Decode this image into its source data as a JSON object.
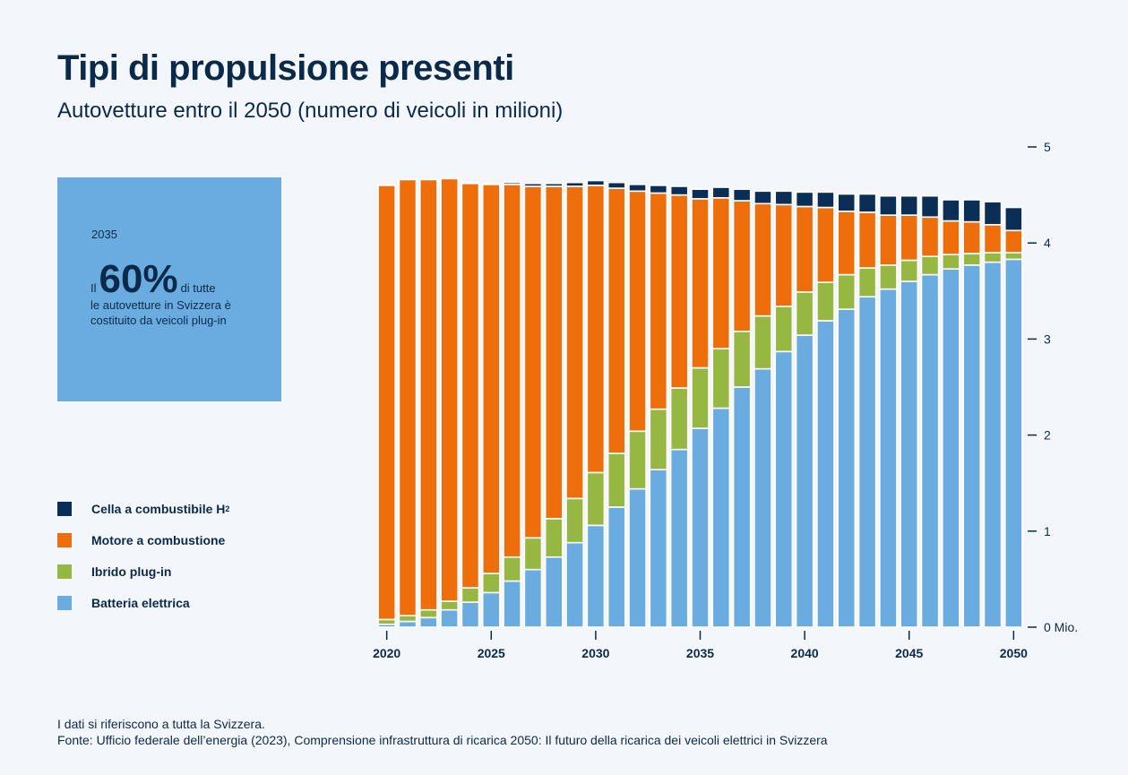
{
  "title": "Tipi di propulsione presenti",
  "subtitle": "Autovetture entro il 2050 (numero di veicoli in milioni)",
  "callout": {
    "year": "2035",
    "prefix": "Il",
    "percent": "60%",
    "suffix": "di tutte",
    "rest": "le autovetture in Svizzera è costituito da veicoli plug-in"
  },
  "footer": {
    "line1": "I dati si riferiscono a tutta la Svizzera.",
    "line2": "Fonte: Ufficio federale dell’energia (2023), Comprensione infrastruttura di ricarica 2050: Il futuro della ricarica dei veicoli elettrici in Svizzera"
  },
  "chart_data": {
    "type": "bar",
    "stacked": true,
    "x": [
      2020,
      2021,
      2022,
      2023,
      2024,
      2025,
      2026,
      2027,
      2028,
      2029,
      2030,
      2031,
      2032,
      2033,
      2034,
      2035,
      2036,
      2037,
      2038,
      2039,
      2040,
      2041,
      2042,
      2043,
      2044,
      2045,
      2046,
      2047,
      2048,
      2049,
      2050
    ],
    "x_tick_labels": [
      "2020",
      "2025",
      "2030",
      "2035",
      "2040",
      "2045",
      "2050"
    ],
    "y_tick_labels": [
      "0 Mio.",
      "1",
      "2",
      "3",
      "4",
      "5"
    ],
    "ylim": [
      0,
      5
    ],
    "legend": [
      {
        "name": "Cella a combustibile H",
        "sub": "2",
        "color": "#0b2e57"
      },
      {
        "name": "Motore a combustione",
        "color": "#ee6e0c"
      },
      {
        "name": "Ibrido plug-in",
        "color": "#97b743"
      },
      {
        "name": "Batteria elettrica",
        "color": "#6aace0"
      }
    ],
    "series": [
      {
        "name": "Batteria elettrica",
        "color": "#6aace0",
        "values": [
          0.03,
          0.06,
          0.1,
          0.18,
          0.26,
          0.36,
          0.48,
          0.6,
          0.73,
          0.88,
          1.06,
          1.25,
          1.44,
          1.64,
          1.85,
          2.07,
          2.28,
          2.5,
          2.69,
          2.87,
          3.04,
          3.19,
          3.31,
          3.44,
          3.52,
          3.6,
          3.67,
          3.73,
          3.77,
          3.8,
          3.83
        ]
      },
      {
        "name": "Ibrido plug-in",
        "color": "#97b743",
        "values": [
          0.05,
          0.06,
          0.08,
          0.09,
          0.15,
          0.2,
          0.25,
          0.33,
          0.4,
          0.46,
          0.55,
          0.56,
          0.6,
          0.63,
          0.64,
          0.63,
          0.62,
          0.58,
          0.55,
          0.47,
          0.45,
          0.4,
          0.36,
          0.3,
          0.25,
          0.22,
          0.19,
          0.15,
          0.12,
          0.1,
          0.07
        ]
      },
      {
        "name": "Motore a combustione",
        "color": "#ee6e0c",
        "values": [
          4.52,
          4.54,
          4.48,
          4.4,
          4.21,
          4.05,
          3.88,
          3.66,
          3.46,
          3.25,
          2.99,
          2.76,
          2.5,
          2.25,
          2.01,
          1.76,
          1.57,
          1.36,
          1.17,
          1.06,
          0.89,
          0.78,
          0.66,
          0.58,
          0.52,
          0.47,
          0.41,
          0.35,
          0.33,
          0.29,
          0.23
        ]
      },
      {
        "name": "Cella a combustibile H2",
        "color": "#0b2e57",
        "values": [
          0,
          0,
          0,
          0,
          0.01,
          0.01,
          0.02,
          0.03,
          0.03,
          0.04,
          0.05,
          0.06,
          0.07,
          0.08,
          0.09,
          0.1,
          0.11,
          0.12,
          0.13,
          0.14,
          0.15,
          0.16,
          0.18,
          0.19,
          0.2,
          0.2,
          0.22,
          0.22,
          0.23,
          0.24,
          0.24
        ]
      }
    ]
  }
}
